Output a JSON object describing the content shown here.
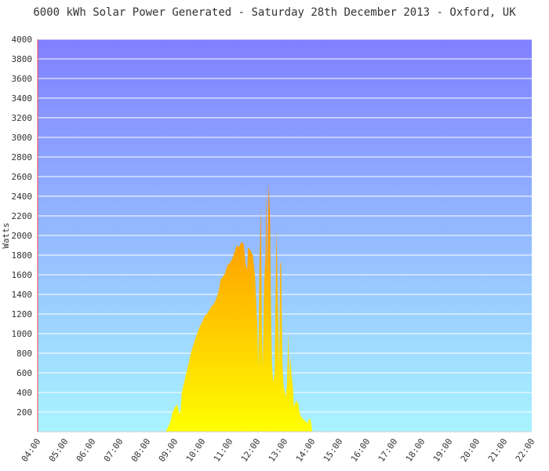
{
  "chart_data": {
    "type": "area",
    "title": "6000 kWh Solar Power Generated - Saturday 28th December 2013 - Oxford, UK",
    "xlabel": "",
    "ylabel": "Watts",
    "x_unit": "time of day",
    "xlim": [
      "04:00",
      "22:00"
    ],
    "ylim": [
      0,
      4000
    ],
    "y_ticks": [
      200,
      400,
      600,
      800,
      1000,
      1200,
      1400,
      1600,
      1800,
      2000,
      2200,
      2400,
      2600,
      2800,
      3000,
      3200,
      3400,
      3600,
      3800,
      4000
    ],
    "x_ticks": [
      "04:00",
      "05:00",
      "06:00",
      "07:00",
      "08:00",
      "09:00",
      "10:00",
      "11:00",
      "12:00",
      "13:00",
      "14:00",
      "15:00",
      "16:00",
      "17:00",
      "18:00",
      "19:00",
      "20:00",
      "21:00",
      "22:00"
    ],
    "grid": true,
    "legend": "none",
    "colors": {
      "background_top": "#8080ff",
      "background_bottom": "#a8f4ff",
      "area_top": "#ff8000",
      "area_bottom": "#ffff00",
      "grid": "#ffffff",
      "axis_left": "#ff4444",
      "text": "#333333"
    },
    "series": [
      {
        "x": [
          "08:40",
          "08:45",
          "08:50",
          "08:55",
          "09:00",
          "09:05",
          "09:10",
          "09:12",
          "09:15",
          "09:20",
          "09:25",
          "09:30",
          "09:35",
          "09:40",
          "09:45",
          "09:50",
          "09:55",
          "10:00",
          "10:05",
          "10:10",
          "10:15",
          "10:20",
          "10:25",
          "10:30",
          "10:35",
          "10:40",
          "10:45",
          "10:50",
          "10:55",
          "11:00",
          "11:05",
          "11:10",
          "11:15",
          "11:20",
          "11:25",
          "11:30",
          "11:35",
          "11:38",
          "11:40",
          "11:45",
          "11:50",
          "11:55",
          "12:00",
          "12:02",
          "12:05",
          "12:08",
          "12:10",
          "12:12",
          "12:15",
          "12:18",
          "12:20",
          "12:22",
          "12:25",
          "12:28",
          "12:30",
          "12:32",
          "12:35",
          "12:38",
          "12:40",
          "12:42",
          "12:45",
          "12:48",
          "12:50",
          "12:52",
          "12:55",
          "12:58",
          "13:00",
          "13:02",
          "13:05",
          "13:08",
          "13:10",
          "13:12",
          "13:15",
          "13:18",
          "13:20",
          "13:22",
          "13:25",
          "13:28",
          "13:30",
          "13:32",
          "13:35",
          "13:38",
          "13:40",
          "13:42",
          "13:45",
          "13:48",
          "13:50",
          "13:52",
          "13:55",
          "13:58",
          "14:00",
          "14:05",
          "14:10",
          "14:15",
          "14:20",
          "14:25",
          "14:30",
          "14:35",
          "14:40",
          "14:45",
          "14:50",
          "14:55",
          "15:00",
          "15:05",
          "15:10",
          "15:15",
          "15:20",
          "15:25",
          "15:30",
          "15:35",
          "15:40",
          "15:45",
          "15:50",
          "15:55",
          "16:00",
          "16:05",
          "16:10",
          "16:12"
        ],
        "y": [
          0,
          50,
          100,
          200,
          250,
          280,
          180,
          200,
          400,
          500,
          600,
          700,
          800,
          880,
          950,
          1020,
          1080,
          1120,
          1180,
          1200,
          1240,
          1280,
          1300,
          1350,
          1420,
          1550,
          1580,
          1620,
          1700,
          1720,
          1760,
          1820,
          1900,
          1880,
          1930,
          1920,
          1700,
          1650,
          1880,
          1850,
          1800,
          1600,
          1100,
          650,
          1700,
          2300,
          1100,
          650,
          1500,
          1800,
          2460,
          1600,
          2530,
          2200,
          1300,
          700,
          500,
          600,
          1300,
          2080,
          1300,
          650,
          1700,
          1740,
          700,
          450,
          420,
          350,
          480,
          1040,
          480,
          780,
          580,
          450,
          250,
          280,
          320,
          300,
          280,
          200,
          160,
          140,
          130,
          120,
          110,
          100,
          80,
          120,
          140,
          90,
          0,
          0,
          0,
          0,
          0,
          0,
          0,
          0,
          0,
          0,
          0,
          0,
          0,
          0,
          0,
          0,
          0,
          0,
          0,
          0,
          0,
          0,
          0,
          0,
          0,
          0,
          0,
          0
        ]
      }
    ]
  }
}
